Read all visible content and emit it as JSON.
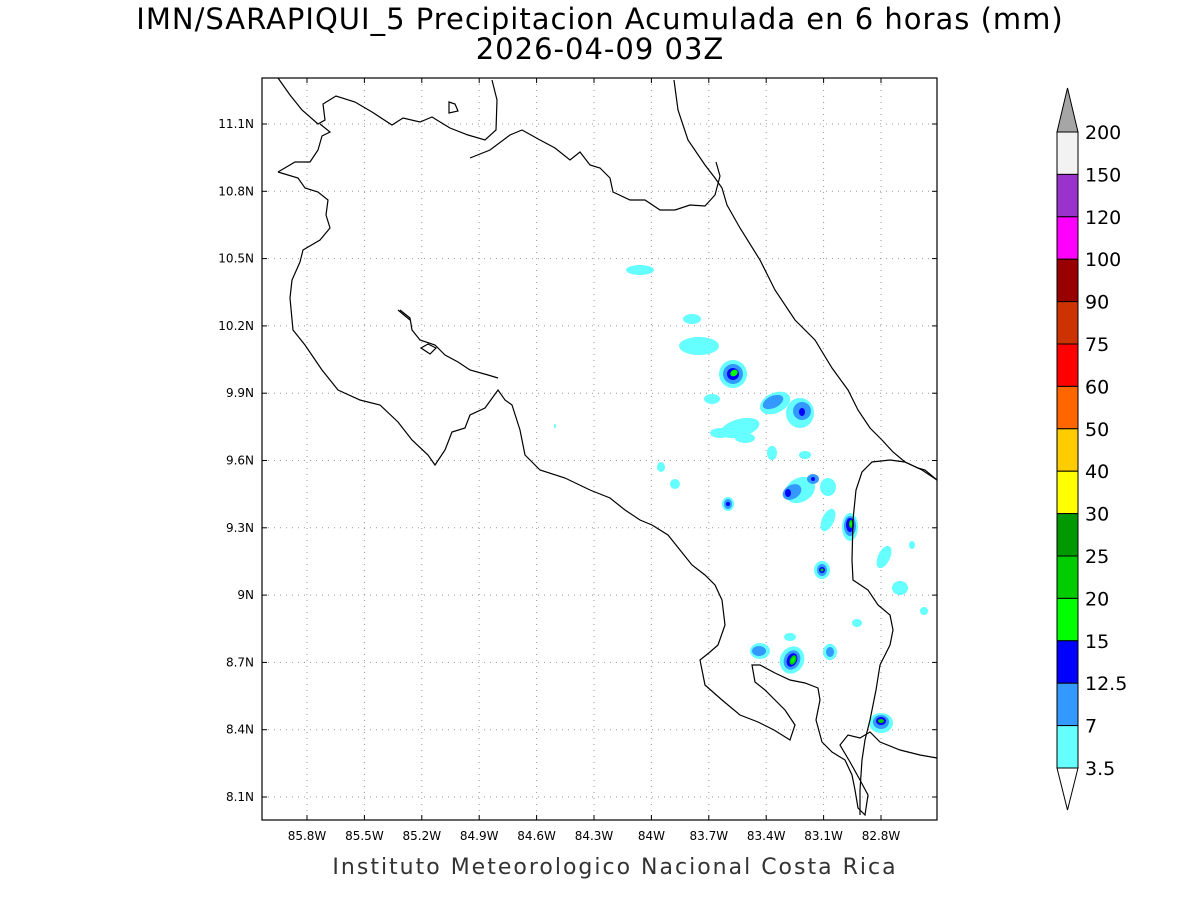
{
  "title": {
    "line1": "IMN/SARAPIQUI_5 Precipitacion Acumulada en 6 horas (mm)",
    "line2": "2026-04-09 03Z"
  },
  "footer": "Instituto Meteorologico Nacional Costa Rica",
  "map": {
    "lon_ticks": [
      "85.8W",
      "85.5W",
      "85.2W",
      "84.9W",
      "84.6W",
      "84.3W",
      "84W",
      "83.7W",
      "83.4W",
      "83.1W",
      "82.8W"
    ],
    "lat_ticks": [
      "11.1N",
      "10.8N",
      "10.5N",
      "10.2N",
      "9.9N",
      "9.6N",
      "9.3N",
      "9N",
      "8.7N",
      "8.4N",
      "8.1N"
    ],
    "lon_range": [
      -86.0,
      -82.3
    ],
    "lat_range": [
      8.0,
      11.3
    ]
  },
  "colorbar": {
    "labels": [
      "200",
      "150",
      "120",
      "100",
      "90",
      "75",
      "60",
      "50",
      "40",
      "30",
      "25",
      "20",
      "15",
      "12.5",
      "7",
      "3.5"
    ],
    "colors": [
      "#f2f2f2",
      "#9933cc",
      "#ff00ff",
      "#990000",
      "#cc3300",
      "#ff0000",
      "#ff6600",
      "#ffcc00",
      "#ffff00",
      "#009900",
      "#00cc00",
      "#00ff00",
      "#0000ff",
      "#3399ff",
      "#66ffff"
    ],
    "top_arrow_color": "#a6a6a6",
    "bottom_arrow_color": "#ffffff"
  }
}
